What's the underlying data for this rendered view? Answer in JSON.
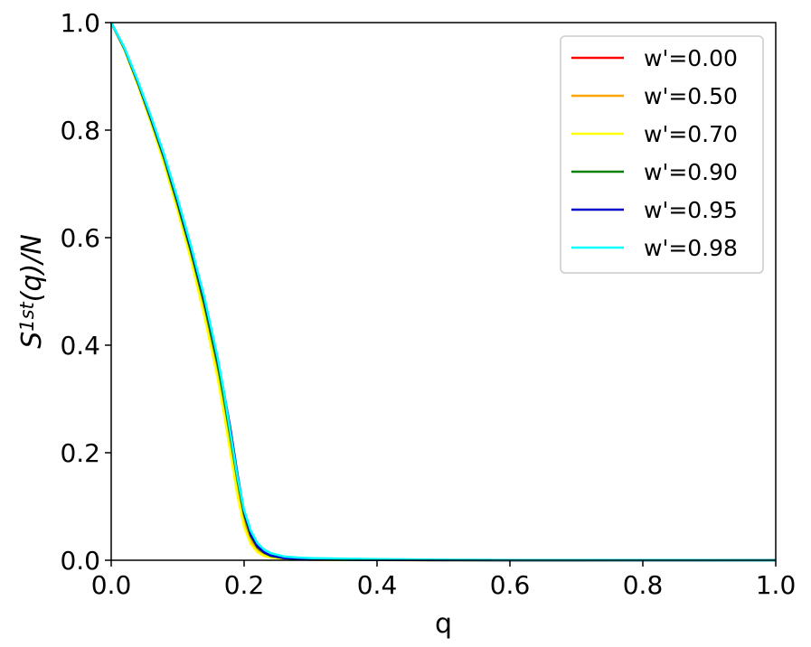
{
  "chart_data": {
    "type": "line",
    "xlabel": "q",
    "ylabel_main": "S",
    "ylabel_sup": "1st",
    "ylabel_rest": "(q)/N",
    "xlim": [
      0,
      1
    ],
    "ylim": [
      0,
      1
    ],
    "xticks": [
      0.0,
      0.2,
      0.4,
      0.6,
      0.8,
      1.0
    ],
    "xtick_labels": [
      "0.0",
      "0.2",
      "0.4",
      "0.6",
      "0.8",
      "1.0"
    ],
    "yticks": [
      0.0,
      0.2,
      0.4,
      0.6,
      0.8,
      1.0
    ],
    "ytick_labels": [
      "0.0",
      "0.2",
      "0.4",
      "0.6",
      "0.8",
      "1.0"
    ],
    "grid": false,
    "legend_position": "top-right",
    "x": [
      0,
      0.02,
      0.04,
      0.06,
      0.08,
      0.1,
      0.12,
      0.14,
      0.16,
      0.17,
      0.18,
      0.19,
      0.2,
      0.21,
      0.22,
      0.23,
      0.24,
      0.26,
      0.28,
      0.3,
      0.35,
      0.4,
      0.5,
      0.6,
      0.8,
      1.0
    ],
    "series": [
      {
        "name": "w'=0.00",
        "color": "#ff0000",
        "values": [
          1.0,
          0.95,
          0.885,
          0.815,
          0.74,
          0.655,
          0.565,
          0.465,
          0.35,
          0.28,
          0.205,
          0.13,
          0.07,
          0.035,
          0.018,
          0.01,
          0.006,
          0.003,
          0.002,
          0.001,
          0.0006,
          0.0004,
          0.0002,
          0.0001,
          0.0,
          0.0
        ]
      },
      {
        "name": "w'=0.50",
        "color": "#ffa500",
        "values": [
          1.0,
          0.95,
          0.886,
          0.816,
          0.741,
          0.657,
          0.567,
          0.468,
          0.354,
          0.285,
          0.21,
          0.135,
          0.073,
          0.037,
          0.019,
          0.011,
          0.006,
          0.003,
          0.002,
          0.001,
          0.0006,
          0.0004,
          0.0002,
          0.0001,
          0.0,
          0.0
        ]
      },
      {
        "name": "w'=0.70",
        "color": "#ffff00",
        "values": [
          1.0,
          0.949,
          0.883,
          0.812,
          0.735,
          0.65,
          0.558,
          0.455,
          0.34,
          0.27,
          0.195,
          0.12,
          0.062,
          0.03,
          0.015,
          0.008,
          0.005,
          0.003,
          0.002,
          0.001,
          0.0006,
          0.0004,
          0.0002,
          0.0001,
          0.0,
          0.0
        ]
      },
      {
        "name": "w'=0.90",
        "color": "#008000",
        "values": [
          1.0,
          0.951,
          0.888,
          0.819,
          0.746,
          0.662,
          0.574,
          0.477,
          0.365,
          0.298,
          0.225,
          0.15,
          0.085,
          0.045,
          0.024,
          0.014,
          0.008,
          0.004,
          0.002,
          0.0015,
          0.0008,
          0.0005,
          0.0002,
          0.0001,
          0.0,
          0.0
        ]
      },
      {
        "name": "w'=0.95",
        "color": "#0000cd",
        "values": [
          1.0,
          0.952,
          0.89,
          0.822,
          0.75,
          0.668,
          0.58,
          0.485,
          0.375,
          0.31,
          0.24,
          0.16,
          0.09,
          0.048,
          0.026,
          0.015,
          0.009,
          0.004,
          0.003,
          0.002,
          0.001,
          0.0006,
          0.0003,
          0.0001,
          0.0,
          0.0
        ]
      },
      {
        "name": "w'=0.98",
        "color": "#00ffff",
        "values": [
          1.0,
          0.953,
          0.892,
          0.825,
          0.753,
          0.672,
          0.585,
          0.49,
          0.378,
          0.31,
          0.232,
          0.155,
          0.093,
          0.055,
          0.032,
          0.02,
          0.013,
          0.007,
          0.005,
          0.004,
          0.003,
          0.002,
          0.001,
          0.0005,
          0.0002,
          0.0
        ]
      }
    ]
  }
}
